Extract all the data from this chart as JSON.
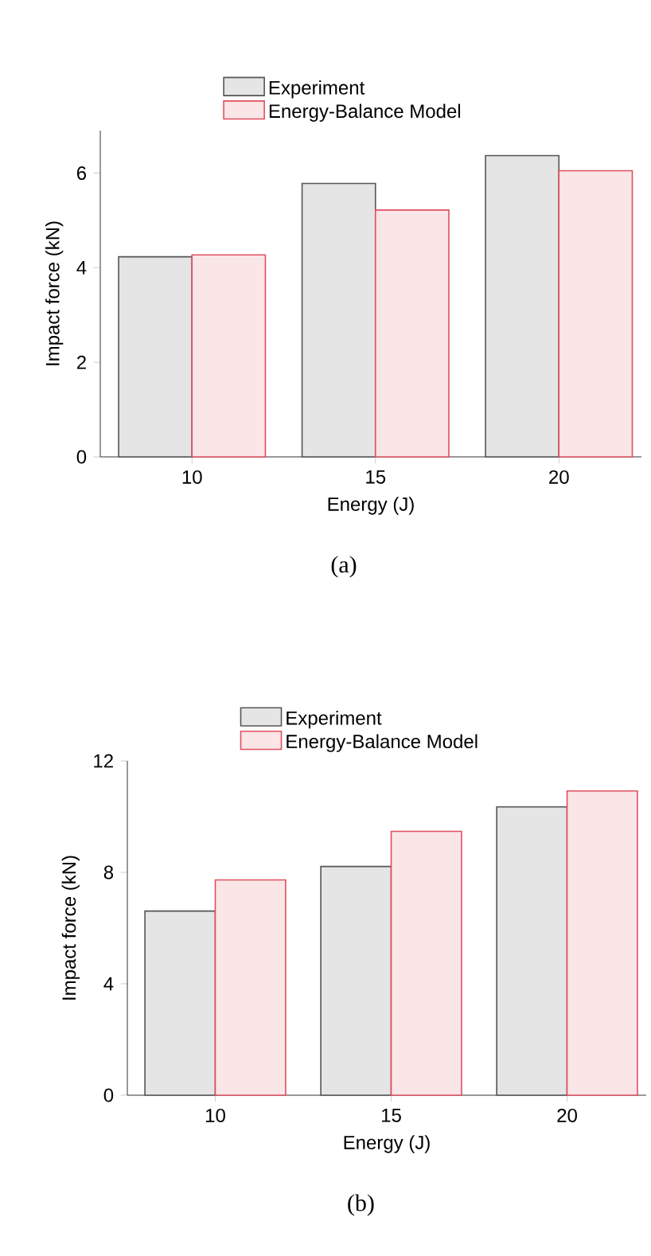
{
  "chart_data": [
    {
      "type": "bar",
      "categories": [
        "10",
        "15",
        "20"
      ],
      "xlabel": "Energy (J)",
      "ylabel": "Impact force (kN)",
      "ylim": [
        0,
        6.9
      ],
      "yticks": [
        0,
        2,
        4,
        6
      ],
      "legend": "top",
      "annotations": [
        "(a)"
      ],
      "series": [
        {
          "name": "Experiment",
          "color": "#555555",
          "values": [
            4.23,
            5.78,
            6.37
          ]
        },
        {
          "name": "Energy-Balance Model",
          "color": "#e05060",
          "values": [
            4.27,
            5.22,
            6.05
          ]
        }
      ]
    },
    {
      "type": "bar",
      "categories": [
        "10",
        "15",
        "20"
      ],
      "xlabel": "Energy (J)",
      "ylabel": "Impact force (kN)",
      "ylim": [
        0,
        12
      ],
      "yticks": [
        0,
        4,
        8,
        12
      ],
      "legend": "top",
      "annotations": [
        "(b)"
      ],
      "series": [
        {
          "name": "Experiment",
          "color": "#555555",
          "values": [
            6.61,
            8.21,
            10.35
          ]
        },
        {
          "name": "Energy-Balance Model",
          "color": "#e05060",
          "values": [
            7.73,
            9.47,
            10.92
          ]
        }
      ]
    }
  ]
}
